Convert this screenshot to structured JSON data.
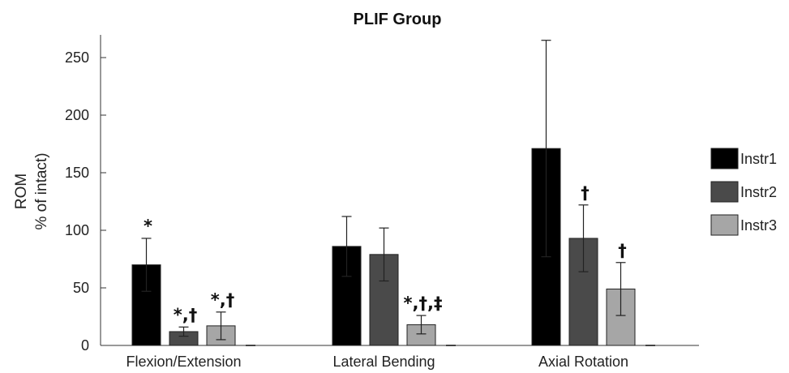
{
  "chart_data": {
    "type": "bar",
    "title": "PLIF Group",
    "ylabel_line1": "ROM",
    "ylabel_line2": "% of intact)",
    "ylim": [
      0,
      270
    ],
    "yticks": [
      "0",
      "50",
      "100",
      "150",
      "200",
      "250"
    ],
    "categories": [
      "Flexion/Extension",
      "Lateral Bending",
      "Axial Rotation"
    ],
    "series": [
      {
        "name": "Instr1",
        "color": "#000000",
        "values": [
          70,
          86,
          171
        ],
        "errors": [
          23,
          26,
          94
        ],
        "annotations": [
          "*",
          "",
          ""
        ]
      },
      {
        "name": "Instr2",
        "color": "#4a4a4a",
        "values": [
          12,
          79,
          93
        ],
        "errors": [
          4,
          23,
          29
        ],
        "annotations": [
          "*,†",
          "",
          "†"
        ]
      },
      {
        "name": "Instr3",
        "color": "#a6a6a6",
        "values": [
          17,
          18,
          49
        ],
        "errors": [
          12,
          8,
          23
        ],
        "annotations": [
          "*,†",
          "*,†,‡",
          "†"
        ]
      }
    ],
    "legend_position": "right",
    "grid": false
  }
}
